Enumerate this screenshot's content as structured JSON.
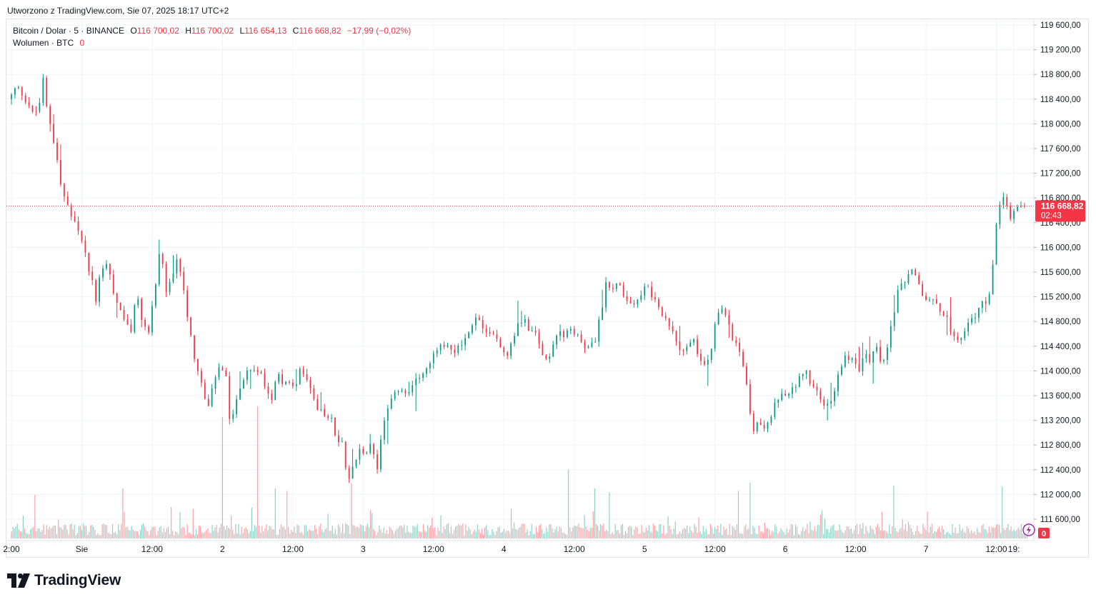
{
  "created_label": "Utworzono z TradingView.com, Sie 07, 2025 18:17 UTC+2",
  "legend": {
    "symbol": "Bitcoin / Dolar · 5 · BINANCE",
    "o_label": "O",
    "o_value": "116 700,02",
    "h_label": "H",
    "h_value": "116 700,02",
    "l_label": "L",
    "l_value": "116 654,13",
    "c_label": "C",
    "c_value": "116 668,82",
    "change": "−17,99 (−0,02%)",
    "volume_label": "Wolumen · BTC",
    "volume_value": "0"
  },
  "colors": {
    "up": "#089981",
    "down": "#f23645",
    "grid": "#f0f3fa",
    "text": "#131722"
  },
  "brand": "TradingView",
  "chart_data": {
    "type": "candlestick",
    "interval": "5",
    "y_ticks": [
      "119 600,00",
      "119 200,00",
      "118 800,00",
      "118 400,00",
      "118 000,00",
      "117 600,00",
      "117 200,00",
      "116 800,00",
      "116 400,00",
      "116 000,00",
      "115 600,00",
      "115 200,00",
      "114 800,00",
      "114 400,00",
      "114 000,00",
      "113 600,00",
      "113 200,00",
      "112 800,00",
      "112 400,00",
      "112 000,00",
      "111 600,00"
    ],
    "y_tick_values": [
      119600,
      119200,
      118800,
      118400,
      118000,
      117600,
      117200,
      116800,
      116400,
      116000,
      115600,
      115200,
      114800,
      114400,
      114000,
      113600,
      113200,
      112800,
      112400,
      112000,
      111600
    ],
    "ylim": [
      111400,
      119700
    ],
    "x_ticks": [
      {
        "label": "2:00",
        "hours": 0
      },
      {
        "label": "Sie",
        "hours": 12
      },
      {
        "label": "12:00",
        "hours": 24
      },
      {
        "label": "2",
        "hours": 36
      },
      {
        "label": "12:00",
        "hours": 48
      },
      {
        "label": "3",
        "hours": 60
      },
      {
        "label": "12:00",
        "hours": 72
      },
      {
        "label": "4",
        "hours": 84
      },
      {
        "label": "12:00",
        "hours": 96
      },
      {
        "label": "5",
        "hours": 108
      },
      {
        "label": "12:00",
        "hours": 120
      },
      {
        "label": "6",
        "hours": 132
      },
      {
        "label": "12:00",
        "hours": 144
      },
      {
        "label": "7",
        "hours": 156
      },
      {
        "label": "12:00",
        "hours": 168
      },
      {
        "label": "19:",
        "hours": 171
      }
    ],
    "xlim_hours": [
      0,
      174.5
    ],
    "price_path": [
      [
        0,
        118400
      ],
      [
        1.5,
        118550
      ],
      [
        2.5,
        118450
      ],
      [
        3.5,
        118350
      ],
      [
        4.5,
        118150
      ],
      [
        5.5,
        118350
      ],
      [
        6,
        118700
      ],
      [
        6.5,
        118250
      ],
      [
        7,
        118000
      ],
      [
        8,
        117700
      ],
      [
        9,
        117050
      ],
      [
        10,
        116700
      ],
      [
        11,
        116450
      ],
      [
        12,
        116200
      ],
      [
        13,
        115900
      ],
      [
        14,
        115550
      ],
      [
        15,
        115150
      ],
      [
        16,
        115700
      ],
      [
        17,
        115800
      ],
      [
        18,
        115300
      ],
      [
        19,
        115050
      ],
      [
        20,
        114800
      ],
      [
        21,
        114650
      ],
      [
        22,
        115200
      ],
      [
        23,
        114750
      ],
      [
        24,
        114600
      ],
      [
        25,
        115300
      ],
      [
        26,
        115850
      ],
      [
        27,
        115150
      ],
      [
        28,
        115400
      ],
      [
        29,
        115700
      ],
      [
        30,
        115300
      ],
      [
        31,
        114700
      ],
      [
        32,
        114200
      ],
      [
        33,
        113850
      ],
      [
        34,
        113400
      ],
      [
        35,
        113700
      ],
      [
        36,
        114000
      ],
      [
        37,
        113900
      ],
      [
        38,
        113000
      ],
      [
        39,
        113500
      ],
      [
        40,
        113700
      ],
      [
        41,
        113950
      ],
      [
        42,
        114000
      ],
      [
        43,
        114050
      ],
      [
        44,
        113800
      ],
      [
        45,
        113650
      ],
      [
        46,
        114050
      ],
      [
        47,
        113900
      ],
      [
        48,
        113800
      ],
      [
        49,
        113750
      ],
      [
        50,
        114000
      ],
      [
        51,
        113800
      ],
      [
        52,
        113550
      ],
      [
        53,
        113400
      ],
      [
        54,
        113300
      ],
      [
        55,
        113300
      ],
      [
        56,
        112900
      ],
      [
        57,
        112900
      ],
      [
        58,
        112300
      ],
      [
        59,
        112600
      ],
      [
        60,
        112800
      ],
      [
        61,
        112600
      ],
      [
        62,
        112800
      ],
      [
        63,
        112400
      ],
      [
        64,
        113100
      ],
      [
        65,
        113300
      ],
      [
        66,
        113600
      ],
      [
        67,
        113700
      ],
      [
        68,
        113600
      ],
      [
        69,
        113700
      ],
      [
        70,
        113900
      ],
      [
        71,
        114000
      ],
      [
        72,
        114100
      ],
      [
        73,
        114300
      ],
      [
        74,
        114350
      ],
      [
        75,
        114400
      ],
      [
        76,
        114200
      ],
      [
        77,
        114400
      ],
      [
        78,
        114550
      ],
      [
        79,
        114700
      ],
      [
        80,
        114900
      ],
      [
        81,
        114650
      ],
      [
        82,
        114500
      ],
      [
        83,
        114600
      ],
      [
        84,
        114450
      ],
      [
        85,
        114300
      ],
      [
        86,
        114550
      ],
      [
        87,
        114900
      ],
      [
        88,
        114950
      ],
      [
        89,
        114750
      ],
      [
        90,
        114700
      ],
      [
        91,
        114350
      ],
      [
        92,
        114250
      ],
      [
        93,
        114500
      ],
      [
        94,
        114750
      ],
      [
        95,
        114650
      ],
      [
        96,
        114700
      ],
      [
        97,
        114600
      ],
      [
        98,
        114500
      ],
      [
        99,
        114400
      ],
      [
        100,
        114400
      ],
      [
        101,
        114800
      ],
      [
        102,
        115400
      ],
      [
        103,
        115350
      ],
      [
        104,
        115500
      ],
      [
        105,
        115150
      ],
      [
        106,
        115000
      ],
      [
        107,
        115050
      ],
      [
        108,
        115100
      ],
      [
        109,
        115350
      ],
      [
        110,
        115200
      ],
      [
        111,
        115000
      ],
      [
        112,
        114900
      ],
      [
        113,
        114700
      ],
      [
        114,
        114550
      ],
      [
        115,
        114400
      ],
      [
        116,
        114450
      ],
      [
        117,
        114550
      ],
      [
        118,
        114200
      ],
      [
        119,
        114100
      ],
      [
        120,
        114400
      ],
      [
        121,
        114900
      ],
      [
        122,
        115000
      ],
      [
        123,
        114850
      ],
      [
        124,
        114500
      ],
      [
        125,
        114300
      ],
      [
        126,
        113850
      ],
      [
        127,
        113000
      ],
      [
        128,
        113200
      ],
      [
        129,
        113100
      ],
      [
        130,
        113250
      ],
      [
        131,
        113450
      ],
      [
        132,
        113600
      ],
      [
        133,
        113500
      ],
      [
        134,
        113700
      ],
      [
        135,
        113900
      ],
      [
        136,
        114050
      ],
      [
        137,
        113750
      ],
      [
        138,
        113650
      ],
      [
        139,
        113500
      ],
      [
        140,
        113450
      ],
      [
        141,
        113700
      ],
      [
        142,
        114050
      ],
      [
        143,
        114250
      ],
      [
        144,
        114200
      ],
      [
        145,
        114000
      ],
      [
        146,
        114300
      ],
      [
        147,
        114200
      ],
      [
        148,
        114350
      ],
      [
        149,
        114100
      ],
      [
        150,
        114400
      ],
      [
        151,
        114850
      ],
      [
        152,
        115250
      ],
      [
        153,
        115350
      ],
      [
        154,
        115500
      ],
      [
        155,
        115450
      ],
      [
        156,
        115200
      ],
      [
        157,
        115150
      ],
      [
        158,
        115100
      ],
      [
        159,
        115000
      ],
      [
        160,
        114900
      ],
      [
        161,
        114650
      ],
      [
        162,
        114500
      ],
      [
        163,
        114650
      ],
      [
        164,
        114750
      ],
      [
        165,
        114850
      ],
      [
        166,
        115050
      ],
      [
        167,
        115050
      ],
      [
        168,
        115700
      ],
      [
        169,
        116600
      ],
      [
        170,
        116700
      ],
      [
        171,
        116400
      ],
      [
        172,
        116550
      ],
      [
        173,
        116650
      ],
      [
        173.3,
        116668.82
      ]
    ],
    "last_price_label": "116 668,82",
    "countdown_label": "02:43",
    "last_price": 116668.82,
    "volume_axis_label": "0",
    "volume_peaks": [
      {
        "hours": 42,
        "ratio": 1.0
      },
      {
        "hours": 36,
        "ratio": 0.92
      },
      {
        "hours": 45,
        "ratio": 0.38
      },
      {
        "hours": 58,
        "ratio": 0.42
      },
      {
        "hours": 95,
        "ratio": 0.52
      },
      {
        "hours": 102,
        "ratio": 0.35
      },
      {
        "hours": 99.5,
        "ratio": 0.38
      },
      {
        "hours": 126,
        "ratio": 0.42
      },
      {
        "hours": 150.5,
        "ratio": 0.4
      },
      {
        "hours": 169,
        "ratio": 0.39
      },
      {
        "hours": 124,
        "ratio": 0.36
      },
      {
        "hours": 4,
        "ratio": 0.33
      },
      {
        "hours": 19,
        "ratio": 0.38
      },
      {
        "hours": 47,
        "ratio": 0.36
      }
    ]
  }
}
